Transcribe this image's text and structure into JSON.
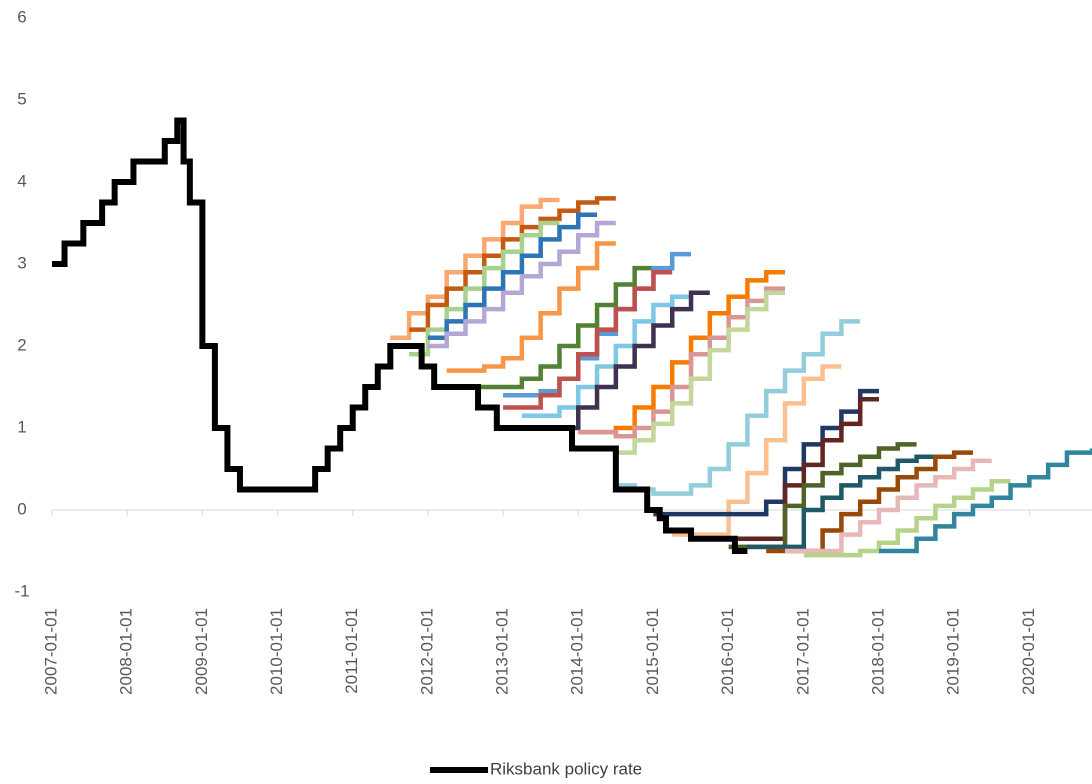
{
  "chart_data": {
    "type": "line",
    "step": true,
    "xlim": [
      "2007-01-01",
      "2020-11-01"
    ],
    "xticks": [
      "2007-01-01",
      "2008-01-01",
      "2009-01-01",
      "2010-01-01",
      "2011-01-01",
      "2012-01-01",
      "2013-01-01",
      "2014-01-01",
      "2015-01-01",
      "2016-01-01",
      "2017-01-01",
      "2018-01-01",
      "2019-01-01",
      "2020-01-01"
    ],
    "ylim": [
      -1,
      6
    ],
    "yticks": [
      -1,
      0,
      1,
      2,
      3,
      4,
      5,
      6
    ],
    "grid": false,
    "legend": "bottom",
    "series": [
      {
        "color": "#f9a86f",
        "x": [
          "2011-07-01",
          "2011-10-01",
          "2012-01-01",
          "2012-04-01",
          "2012-07-01",
          "2012-10-01",
          "2013-01-01",
          "2013-04-01",
          "2013-07-01",
          "2013-10-01"
        ],
        "values": [
          2.1,
          2.4,
          2.6,
          2.9,
          3.1,
          3.3,
          3.5,
          3.7,
          3.78,
          3.78
        ]
      },
      {
        "color": "#c55a11",
        "x": [
          "2011-10-01",
          "2012-01-01",
          "2012-04-01",
          "2012-07-01",
          "2012-10-01",
          "2013-01-01",
          "2013-04-01",
          "2013-07-01",
          "2013-10-01",
          "2014-01-01",
          "2014-04-01",
          "2014-07-01"
        ],
        "values": [
          2.2,
          2.5,
          2.7,
          2.9,
          3.1,
          3.3,
          3.45,
          3.55,
          3.65,
          3.75,
          3.8,
          3.8
        ]
      },
      {
        "color": "#a9d18e",
        "x": [
          "2011-10-01",
          "2012-01-01",
          "2012-04-01",
          "2012-07-01",
          "2012-10-01",
          "2013-01-01",
          "2013-04-01",
          "2013-07-01",
          "2013-10-01"
        ],
        "values": [
          1.9,
          2.2,
          2.45,
          2.7,
          2.95,
          3.15,
          3.35,
          3.5,
          3.5
        ]
      },
      {
        "color": "#2e75b6",
        "x": [
          "2012-01-01",
          "2012-04-01",
          "2012-07-01",
          "2012-10-01",
          "2013-01-01",
          "2013-04-01",
          "2013-07-01",
          "2013-10-01",
          "2014-01-01",
          "2014-04-01"
        ],
        "values": [
          2.1,
          2.3,
          2.5,
          2.7,
          2.9,
          3.1,
          3.3,
          3.45,
          3.6,
          3.6
        ]
      },
      {
        "color": "#b4a7d6",
        "x": [
          "2012-01-01",
          "2012-04-01",
          "2012-07-01",
          "2012-10-01",
          "2013-01-01",
          "2013-04-01",
          "2013-07-01",
          "2013-10-01",
          "2014-01-01",
          "2014-04-01",
          "2014-07-01"
        ],
        "values": [
          2.0,
          2.15,
          2.3,
          2.45,
          2.65,
          2.85,
          3.0,
          3.15,
          3.35,
          3.5,
          3.5
        ]
      },
      {
        "color": "#f79646",
        "x": [
          "2012-04-01",
          "2012-07-01",
          "2012-10-01",
          "2013-01-01",
          "2013-04-01",
          "2013-07-01",
          "2013-10-01",
          "2014-01-01",
          "2014-04-01",
          "2014-07-01"
        ],
        "values": [
          1.7,
          1.7,
          1.75,
          1.85,
          2.1,
          2.4,
          2.7,
          2.95,
          3.25,
          3.25
        ]
      },
      {
        "color": "#548235",
        "x": [
          "2012-07-01",
          "2013-01-01",
          "2013-04-01",
          "2013-07-01",
          "2013-10-01",
          "2014-01-01",
          "2014-04-01",
          "2014-07-01",
          "2014-10-01",
          "2015-01-01"
        ],
        "values": [
          1.5,
          1.5,
          1.6,
          1.75,
          2.0,
          2.25,
          2.5,
          2.75,
          2.95,
          2.95
        ]
      },
      {
        "color": "#5b9bd5",
        "x": [
          "2013-01-01",
          "2013-07-01",
          "2013-10-01",
          "2014-01-01",
          "2014-04-01",
          "2014-07-01",
          "2014-10-01",
          "2015-01-01",
          "2015-04-01",
          "2015-07-01"
        ],
        "values": [
          1.4,
          1.45,
          1.6,
          1.85,
          2.15,
          2.45,
          2.7,
          2.95,
          3.12,
          3.12
        ]
      },
      {
        "color": "#c0504d",
        "x": [
          "2013-01-01",
          "2013-07-01",
          "2013-10-01",
          "2014-01-01",
          "2014-04-01",
          "2014-07-01",
          "2014-10-01",
          "2015-01-01",
          "2015-04-01"
        ],
        "values": [
          1.25,
          1.4,
          1.6,
          1.9,
          2.2,
          2.45,
          2.7,
          2.9,
          2.9
        ]
      },
      {
        "color": "#7ec8e3",
        "x": [
          "2013-04-01",
          "2013-10-01",
          "2014-01-01",
          "2014-04-01",
          "2014-07-01",
          "2014-10-01",
          "2015-01-01",
          "2015-04-01",
          "2015-07-01"
        ],
        "values": [
          1.15,
          1.25,
          1.5,
          1.75,
          2.0,
          2.3,
          2.5,
          2.6,
          2.6
        ]
      },
      {
        "color": "#403152",
        "x": [
          "2013-07-01",
          "2014-01-01",
          "2014-04-01",
          "2014-07-01",
          "2014-10-01",
          "2015-01-01",
          "2015-04-01",
          "2015-07-01",
          "2015-10-01"
        ],
        "values": [
          1.0,
          1.25,
          1.5,
          1.75,
          2.0,
          2.25,
          2.45,
          2.65,
          2.65
        ]
      },
      {
        "color": "#f57c00",
        "x": [
          "2014-01-01",
          "2014-07-01",
          "2014-10-01",
          "2015-01-01",
          "2015-04-01",
          "2015-07-01",
          "2015-10-01",
          "2016-01-01",
          "2016-04-01",
          "2016-07-01",
          "2016-10-01"
        ],
        "values": [
          0.95,
          1.0,
          1.25,
          1.5,
          1.8,
          2.1,
          2.4,
          2.6,
          2.8,
          2.9,
          2.9
        ]
      },
      {
        "color": "#d99694",
        "x": [
          "2014-01-01",
          "2014-07-01",
          "2014-10-01",
          "2015-01-01",
          "2015-04-01",
          "2015-07-01",
          "2015-10-01",
          "2016-01-01",
          "2016-04-01",
          "2016-07-01",
          "2016-10-01"
        ],
        "values": [
          0.95,
          0.9,
          1.0,
          1.2,
          1.5,
          1.9,
          2.1,
          2.35,
          2.55,
          2.7,
          2.7
        ]
      },
      {
        "color": "#c3d69b",
        "x": [
          "2014-04-01",
          "2014-07-01",
          "2014-10-01",
          "2015-01-01",
          "2015-04-01",
          "2015-07-01",
          "2015-10-01",
          "2016-01-01",
          "2016-04-01",
          "2016-07-01",
          "2016-10-01"
        ],
        "values": [
          0.75,
          0.7,
          0.85,
          1.05,
          1.3,
          1.6,
          1.95,
          2.2,
          2.45,
          2.65,
          2.65
        ]
      },
      {
        "color": "#92cddc",
        "x": [
          "2014-07-01",
          "2014-10-01",
          "2015-01-01",
          "2015-07-01",
          "2015-10-01",
          "2016-01-01",
          "2016-04-01",
          "2016-07-01",
          "2016-10-01",
          "2017-01-01",
          "2017-04-01",
          "2017-07-01",
          "2017-10-01"
        ],
        "values": [
          0.3,
          0.25,
          0.2,
          0.3,
          0.5,
          0.8,
          1.15,
          1.45,
          1.7,
          1.9,
          2.15,
          2.3,
          2.3
        ]
      },
      {
        "color": "#fac090",
        "x": [
          "2015-04-01",
          "2016-01-01",
          "2016-04-01",
          "2016-07-01",
          "2016-10-01",
          "2017-01-01",
          "2017-04-01",
          "2017-07-01"
        ],
        "values": [
          -0.3,
          0.1,
          0.45,
          0.85,
          1.3,
          1.6,
          1.75,
          1.75
        ]
      },
      {
        "color": "#1f3864",
        "x": [
          "2015-01-01",
          "2016-07-01",
          "2016-10-01",
          "2017-01-01",
          "2017-04-01",
          "2017-07-01",
          "2017-10-01",
          "2018-01-01"
        ],
        "values": [
          -0.05,
          0.1,
          0.5,
          0.8,
          1.0,
          1.2,
          1.45,
          1.45
        ]
      },
      {
        "color": "#632523",
        "x": [
          "2015-07-01",
          "2016-10-01",
          "2017-01-01",
          "2017-04-01",
          "2017-07-01",
          "2017-10-01",
          "2018-01-01"
        ],
        "values": [
          -0.35,
          0.3,
          0.55,
          0.85,
          1.05,
          1.35,
          1.35
        ]
      },
      {
        "color": "#4f6228",
        "x": [
          "2016-01-01",
          "2016-10-01",
          "2017-01-01",
          "2017-04-01",
          "2017-07-01",
          "2017-10-01",
          "2018-01-01",
          "2018-04-01",
          "2018-07-01"
        ],
        "values": [
          -0.45,
          0.05,
          0.3,
          0.45,
          0.55,
          0.65,
          0.75,
          0.8,
          0.8
        ]
      },
      {
        "color": "#215868",
        "x": [
          "2016-04-01",
          "2017-01-01",
          "2017-04-01",
          "2017-07-01",
          "2017-10-01",
          "2018-01-01",
          "2018-04-01",
          "2018-07-01",
          "2018-10-01"
        ],
        "values": [
          -0.45,
          0.0,
          0.15,
          0.3,
          0.4,
          0.5,
          0.6,
          0.65,
          0.65
        ]
      },
      {
        "color": "#984807",
        "x": [
          "2016-07-01",
          "2017-04-01",
          "2017-07-01",
          "2017-10-01",
          "2018-01-01",
          "2018-04-01",
          "2018-07-01",
          "2018-10-01",
          "2019-01-01",
          "2019-04-01"
        ],
        "values": [
          -0.5,
          -0.25,
          -0.05,
          0.1,
          0.25,
          0.4,
          0.5,
          0.65,
          0.7,
          0.7
        ]
      },
      {
        "color": "#e6b9b8",
        "x": [
          "2016-10-01",
          "2017-07-01",
          "2017-10-01",
          "2018-01-01",
          "2018-04-01",
          "2018-07-01",
          "2018-10-01",
          "2019-01-01",
          "2019-04-01",
          "2019-07-01"
        ],
        "values": [
          -0.5,
          -0.3,
          -0.15,
          0.0,
          0.15,
          0.3,
          0.4,
          0.5,
          0.6,
          0.6
        ]
      },
      {
        "color": "#b5d48a",
        "x": [
          "2017-01-01",
          "2017-10-01",
          "2018-01-01",
          "2018-04-01",
          "2018-07-01",
          "2018-10-01",
          "2019-01-01",
          "2019-04-01",
          "2019-07-01",
          "2019-10-01"
        ],
        "values": [
          -0.55,
          -0.5,
          -0.4,
          -0.25,
          -0.1,
          0.05,
          0.15,
          0.25,
          0.35,
          0.35
        ]
      },
      {
        "color": "#31859c",
        "x": [
          "2018-01-01",
          "2018-07-01",
          "2018-10-01",
          "2019-01-01",
          "2019-04-01",
          "2019-07-01",
          "2019-10-01",
          "2020-01-01",
          "2020-04-01",
          "2020-07-01",
          "2020-11-01"
        ],
        "values": [
          -0.5,
          -0.35,
          -0.2,
          -0.05,
          0.05,
          0.15,
          0.3,
          0.4,
          0.55,
          0.7,
          0.75
        ]
      },
      {
        "name": "Riksbank policy rate",
        "color": "#000000",
        "x": [
          "2007-01-01",
          "2007-03-01",
          "2007-06-01",
          "2007-09-01",
          "2007-11-01",
          "2008-02-01",
          "2008-07-01",
          "2008-09-01",
          "2008-10-01",
          "2008-11-01",
          "2009-01-01",
          "2009-03-01",
          "2009-05-01",
          "2009-07-01",
          "2010-07-01",
          "2010-09-01",
          "2010-11-01",
          "2011-01-01",
          "2011-03-01",
          "2011-05-01",
          "2011-07-01",
          "2011-12-01",
          "2012-02-01",
          "2012-09-01",
          "2012-12-01",
          "2013-12-01",
          "2014-07-01",
          "2014-12-01",
          "2015-02-01",
          "2015-03-01",
          "2015-07-01",
          "2016-02-01",
          "2016-04-01"
        ],
        "values": [
          3.0,
          3.25,
          3.5,
          3.75,
          4.0,
          4.25,
          4.5,
          4.75,
          4.25,
          3.75,
          2.0,
          1.0,
          0.5,
          0.25,
          0.5,
          0.75,
          1.0,
          1.25,
          1.5,
          1.75,
          2.0,
          1.75,
          1.5,
          1.25,
          1.0,
          0.75,
          0.25,
          0.0,
          -0.1,
          -0.25,
          -0.35,
          -0.5,
          -0.5
        ]
      }
    ]
  }
}
